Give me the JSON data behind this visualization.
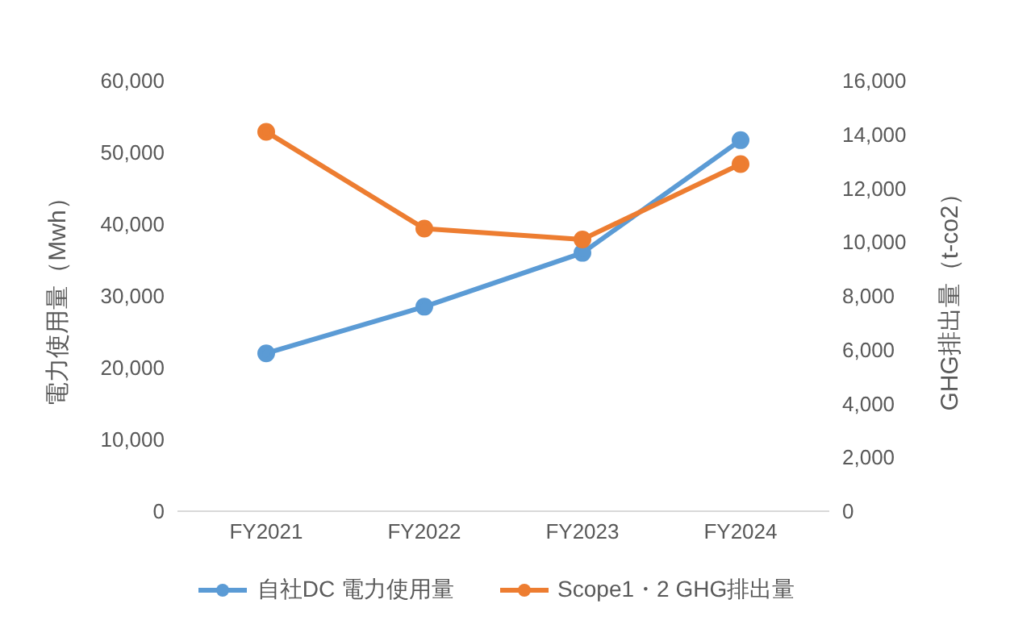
{
  "chart_data": {
    "type": "line",
    "categories": [
      "FY2021",
      "FY2022",
      "FY2023",
      "FY2024"
    ],
    "series": [
      {
        "name": "自社DC 電力使用量",
        "color": "#5b9bd5",
        "values": [
          22000,
          28500,
          36000,
          51700
        ]
      },
      {
        "name": "Scope1・2 GHG排出量",
        "color": "#ed7d31",
        "values": [
          14100,
          10500,
          10100,
          12900
        ],
        "axis": "y2"
      }
    ],
    "ylabel": "電力使用量（Mwh）",
    "y2label": "GHG排出量（t-co2）",
    "ylim": [
      0,
      60000
    ],
    "yticks": [
      0,
      {
        "value": 10000,
        "label": "10,000"
      },
      {
        "value": 20000,
        "label": "20,000"
      },
      {
        "value": 30000,
        "label": "30,000"
      },
      {
        "value": 40000,
        "label": "40,000"
      },
      {
        "value": 50000,
        "label": "50,000"
      },
      {
        "value": 60000,
        "label": "60,000"
      }
    ],
    "y2lim": [
      0,
      16000
    ],
    "y2ticks": [
      0,
      {
        "value": 2000,
        "label": "2,000"
      },
      {
        "value": 4000,
        "label": "4,000"
      },
      {
        "value": 6000,
        "label": "6,000"
      },
      {
        "value": 8000,
        "label": "8,000"
      },
      {
        "value": 10000,
        "label": "10,000"
      },
      {
        "value": 12000,
        "label": "12,000"
      },
      {
        "value": 14000,
        "label": "14,000"
      },
      {
        "value": 16000,
        "label": "16,000"
      }
    ],
    "grid": false,
    "legend": "bottom",
    "marker": "circle",
    "line_style": "solid"
  }
}
